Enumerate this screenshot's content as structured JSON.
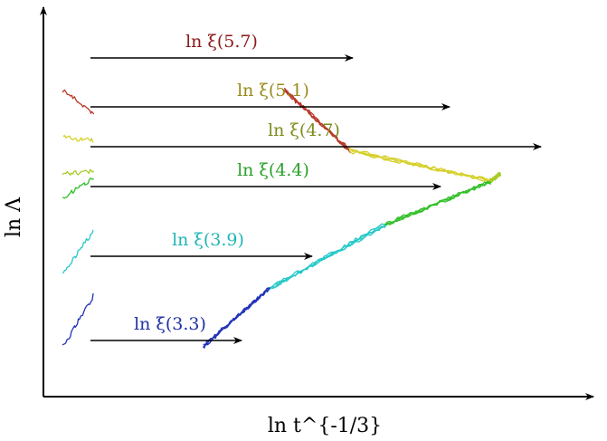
{
  "chart_data": {
    "type": "line",
    "title": "",
    "xlabel": "ln t^{-1/3}",
    "ylabel": "ln Λ",
    "axes": {
      "ticks": "none",
      "x_arrow": true,
      "y_arrow": true,
      "grid": false
    },
    "legend": "none",
    "annotations": [
      {
        "label": "ln ξ(5.7)",
        "xi": 5.7,
        "color": "#8b1a1a"
      },
      {
        "label": "ln ξ(5.1)",
        "xi": 5.1,
        "color": "#9a8a1a"
      },
      {
        "label": "ln ξ(4.7)",
        "xi": 4.7,
        "color": "#7f8c1d"
      },
      {
        "label": "ln ξ(4.4)",
        "xi": 4.4,
        "color": "#2aa02a"
      },
      {
        "label": "ln ξ(3.9)",
        "xi": 3.9,
        "color": "#1fb5b5"
      },
      {
        "label": "ln ξ(3.3)",
        "xi": 3.3,
        "color": "#1f2fa5"
      }
    ],
    "series": [
      {
        "xi": 5.7,
        "color": "#b83a2a",
        "raw_x": [
          0.0,
          0.06
        ],
        "raw_y": [
          0.84,
          0.77
        ],
        "shifted_x": [
          0.44,
          0.57
        ],
        "shifted_y": [
          0.84,
          0.66
        ]
      },
      {
        "xi": 5.1,
        "color": "#d6d02a",
        "raw_x": [
          0.0,
          0.06
        ],
        "raw_y": [
          0.7,
          0.69
        ],
        "shifted_x": [
          0.57,
          0.85
        ],
        "shifted_y": [
          0.66,
          0.57
        ]
      },
      {
        "xi": 4.7,
        "color": "#a8cc2a",
        "raw_x": [
          0.0,
          0.06
        ],
        "raw_y": [
          0.59,
          0.6
        ],
        "shifted_x": [
          0.85,
          0.87
        ],
        "shifted_y": [
          0.57,
          0.59
        ]
      },
      {
        "xi": 4.4,
        "color": "#33c02a",
        "raw_x": [
          0.0,
          0.06
        ],
        "raw_y": [
          0.52,
          0.58
        ],
        "shifted_x": [
          0.64,
          0.85
        ],
        "shifted_y": [
          0.44,
          0.57
        ]
      },
      {
        "xi": 3.9,
        "color": "#27c8c8",
        "raw_x": [
          0.0,
          0.06
        ],
        "raw_y": [
          0.3,
          0.42
        ],
        "shifted_x": [
          0.41,
          0.64
        ],
        "shifted_y": [
          0.25,
          0.44
        ]
      },
      {
        "xi": 3.3,
        "color": "#2233b8",
        "raw_x": [
          0.0,
          0.06
        ],
        "raw_y": [
          0.08,
          0.23
        ],
        "shifted_x": [
          0.28,
          0.41
        ],
        "shifted_y": [
          0.08,
          0.25
        ]
      }
    ]
  }
}
